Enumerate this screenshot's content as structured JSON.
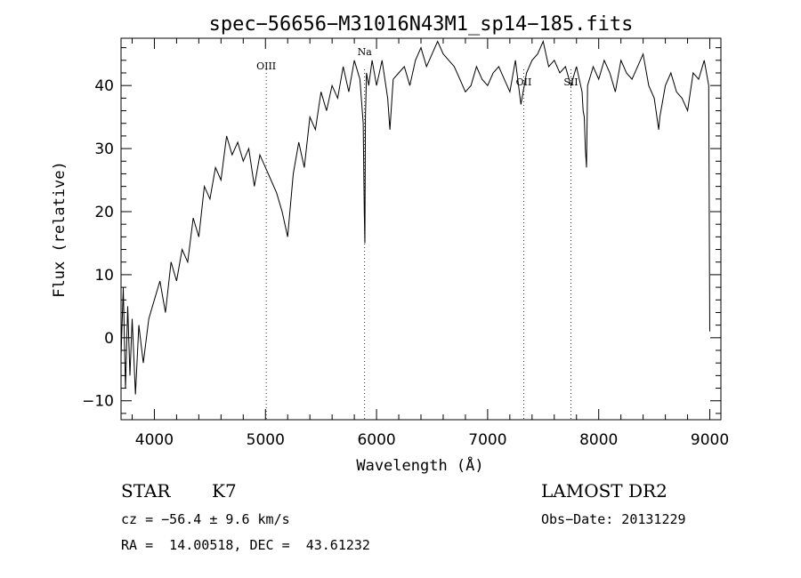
{
  "chart_data": {
    "type": "line",
    "title": "spec−56656−M31016N43M1_sp14−185.fits",
    "xlabel": "Wavelength (Å)",
    "ylabel": "Flux (relative)",
    "xlim": [
      3700,
      9100
    ],
    "ylim": [
      -13,
      47.5
    ],
    "x_ticks": [
      4000,
      5000,
      6000,
      7000,
      8000,
      9000
    ],
    "y_ticks": [
      -10,
      0,
      10,
      20,
      30,
      40
    ],
    "grid": false,
    "series": [
      {
        "x": [
          3700,
          3720,
          3740,
          3760,
          3780,
          3800,
          3830,
          3860,
          3900,
          3950,
          4000,
          4050,
          4100,
          4150,
          4200,
          4250,
          4300,
          4350,
          4400,
          4450,
          4500,
          4550,
          4600,
          4650,
          4700,
          4750,
          4800,
          4850,
          4900,
          4950,
          5000,
          5050,
          5100,
          5150,
          5200,
          5250,
          5300,
          5350,
          5400,
          5450,
          5500,
          5550,
          5600,
          5650,
          5700,
          5750,
          5800,
          5850,
          5880,
          5890,
          5895,
          5900,
          5910,
          5930,
          5960,
          6000,
          6050,
          6100,
          6120,
          6150,
          6200,
          6250,
          6300,
          6350,
          6400,
          6450,
          6500,
          6550,
          6600,
          6650,
          6700,
          6750,
          6800,
          6850,
          6900,
          6950,
          7000,
          7050,
          7100,
          7150,
          7200,
          7250,
          7300,
          7350,
          7400,
          7450,
          7500,
          7550,
          7600,
          7650,
          7700,
          7750,
          7800,
          7850,
          7860,
          7870,
          7880,
          7890,
          7900,
          7950,
          8000,
          8050,
          8100,
          8150,
          8200,
          8250,
          8300,
          8350,
          8400,
          8450,
          8500,
          8540,
          8550,
          8600,
          8650,
          8700,
          8750,
          8800,
          8850,
          8900,
          8950,
          8990,
          9000
        ],
        "y": [
          -3,
          8,
          -8,
          5,
          -6,
          3,
          -9,
          2,
          -4,
          3,
          6,
          9,
          4,
          12,
          9,
          14,
          12,
          19,
          16,
          24,
          22,
          27,
          25,
          32,
          29,
          31,
          28,
          30,
          24,
          29,
          27,
          25,
          23,
          20,
          16,
          26,
          31,
          27,
          35,
          33,
          39,
          36,
          40,
          38,
          43,
          39,
          44,
          41,
          34,
          20,
          15,
          35,
          42,
          40,
          44,
          40,
          44,
          38,
          33,
          41,
          42,
          43,
          40,
          44,
          46,
          43,
          45,
          47,
          45,
          44,
          43,
          41,
          39,
          40,
          43,
          41,
          40,
          42,
          43,
          41,
          39,
          44,
          37,
          42,
          44,
          45,
          47,
          43,
          44,
          42,
          43,
          40,
          43,
          39,
          36,
          35,
          30,
          27,
          40,
          43,
          41,
          44,
          42,
          39,
          44,
          42,
          41,
          43,
          45,
          40,
          38,
          33,
          35,
          40,
          42,
          39,
          38,
          36,
          42,
          41,
          44,
          40,
          1
        ]
      }
    ],
    "line_labels": [
      {
        "label": "OIII",
        "x": 5007
      },
      {
        "label": "Na",
        "x": 5893
      },
      {
        "label": "OII",
        "x": 7325
      },
      {
        "label": "SII",
        "x": 7750
      }
    ],
    "annotations": {
      "class_label": "STAR",
      "subclass_label": "K7",
      "velocity": "cz = −56.4 ± 9.6 km/s",
      "coordinates": "RA =  14.00518, DEC =  43.61232",
      "survey": "LAMOST DR2",
      "obs_date": "Obs−Date: 20131229"
    }
  }
}
